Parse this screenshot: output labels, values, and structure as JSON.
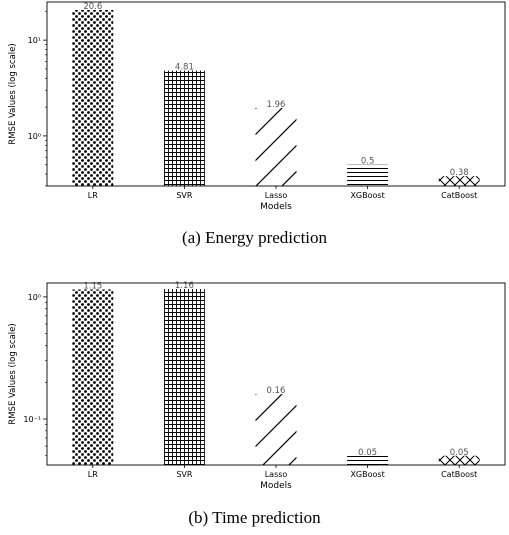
{
  "figure": {
    "caption_a": "(a) Energy prediction",
    "caption_b": "(b) Time prediction"
  },
  "chart_data": [
    {
      "type": "bar",
      "ylabel": "RMSE Values (log scale)",
      "xlabel": "Models",
      "log_scale": true,
      "categories": [
        "LR",
        "SVR",
        "Lasso",
        "XGBoost",
        "CatBoost"
      ],
      "values": [
        20.6,
        4.81,
        1.96,
        0.5,
        0.38
      ],
      "value_labels": [
        "20.6",
        "4.81",
        "1.96",
        "0.5",
        "0.38"
      ],
      "patterns": [
        "dots",
        "grid",
        "diagonal",
        "horizontal",
        "crosshatch"
      ],
      "ylim": [
        0.3,
        25
      ],
      "yticks": [
        {
          "value": 1,
          "label": "10⁰"
        },
        {
          "value": 10,
          "label": "10¹"
        }
      ],
      "color": "#000000"
    },
    {
      "type": "bar",
      "ylabel": "RMSE Values (log scale)",
      "xlabel": "Models",
      "log_scale": true,
      "categories": [
        "LR",
        "SVR",
        "Lasso",
        "XGBoost",
        "CatBoost"
      ],
      "values": [
        1.15,
        1.16,
        0.16,
        0.05,
        0.05
      ],
      "value_labels": [
        "1.15",
        "1.16",
        "0.16",
        "0.05",
        "0.05"
      ],
      "patterns": [
        "dots",
        "grid",
        "diagonal",
        "horizontal",
        "crosshatch"
      ],
      "ylim": [
        0.042,
        1.3
      ],
      "yticks": [
        {
          "value": 0.1,
          "label": "10⁻¹"
        },
        {
          "value": 1,
          "label": "10⁰"
        }
      ],
      "color": "#000000"
    }
  ]
}
